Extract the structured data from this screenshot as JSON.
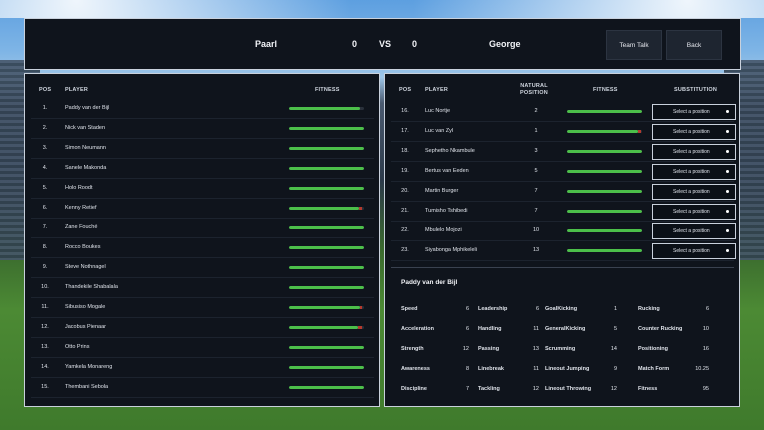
{
  "header": {
    "home_team": "Paarl",
    "home_score": "0",
    "vs": "VS",
    "away_score": "0",
    "away_team": "George",
    "team_talk_label": "Team Talk",
    "back_label": "Back"
  },
  "lineup": {
    "headers": {
      "pos": "POS",
      "player": "PLAYER",
      "fitness": "FITNESS"
    },
    "rows": [
      {
        "pos": "1.",
        "name": "Paddy van der Bijl",
        "fitness": 0.95,
        "red": 0.0
      },
      {
        "pos": "2.",
        "name": "Nick van Staden",
        "fitness": 1.0,
        "red": 0.0
      },
      {
        "pos": "3.",
        "name": "Simon Neumann",
        "fitness": 1.0,
        "red": 0.0
      },
      {
        "pos": "4.",
        "name": "Sanele Makonda",
        "fitness": 1.0,
        "red": 0.0
      },
      {
        "pos": "5.",
        "name": "Holo Roodt",
        "fitness": 1.0,
        "red": 0.0
      },
      {
        "pos": "6.",
        "name": "Kenny Retief",
        "fitness": 0.93,
        "red": 0.04
      },
      {
        "pos": "7.",
        "name": "Zane Fouché",
        "fitness": 1.0,
        "red": 0.0
      },
      {
        "pos": "8.",
        "name": "Rocco Boukes",
        "fitness": 1.0,
        "red": 0.0
      },
      {
        "pos": "9.",
        "name": "Steve Nothnagel",
        "fitness": 1.0,
        "red": 0.0
      },
      {
        "pos": "10.",
        "name": "Thandekile Shabalala",
        "fitness": 1.0,
        "red": 0.0
      },
      {
        "pos": "11.",
        "name": "Sibusiso Mogale",
        "fitness": 0.94,
        "red": 0.03
      },
      {
        "pos": "12.",
        "name": "Jacobus Pienaar",
        "fitness": 0.92,
        "red": 0.05
      },
      {
        "pos": "13.",
        "name": "Otto Prins",
        "fitness": 1.0,
        "red": 0.0
      },
      {
        "pos": "14.",
        "name": "Yamkela Monareng",
        "fitness": 1.0,
        "red": 0.0
      },
      {
        "pos": "15.",
        "name": "Thembani Sebola",
        "fitness": 1.0,
        "red": 0.0
      }
    ]
  },
  "bench": {
    "headers": {
      "pos": "POS",
      "player": "PLAYER",
      "natural_position": "NATURAL POSITION",
      "fitness": "FITNESS",
      "substitution": "SUBSTITUTION"
    },
    "select_placeholder": "Select a position",
    "rows": [
      {
        "pos": "16.",
        "name": "Luc Nortje",
        "natural": "2",
        "fitness": 1.0,
        "red": 0.0
      },
      {
        "pos": "17.",
        "name": "Luc van Zyl",
        "natural": "1",
        "fitness": 0.95,
        "red": 0.03
      },
      {
        "pos": "18.",
        "name": "Sephetho Nkambule",
        "natural": "3",
        "fitness": 1.0,
        "red": 0.0
      },
      {
        "pos": "19.",
        "name": "Bertus van Eeden",
        "natural": "5",
        "fitness": 1.0,
        "red": 0.0
      },
      {
        "pos": "20.",
        "name": "Martin Burger",
        "natural": "7",
        "fitness": 1.0,
        "red": 0.0
      },
      {
        "pos": "21.",
        "name": "Tumisho Tshibedi",
        "natural": "7",
        "fitness": 1.0,
        "red": 0.0
      },
      {
        "pos": "22.",
        "name": "Mbulelo Mojozi",
        "natural": "10",
        "fitness": 1.0,
        "red": 0.0
      },
      {
        "pos": "23.",
        "name": "Siyabonga Mphikeleli",
        "natural": "13",
        "fitness": 1.0,
        "red": 0.0
      }
    ]
  },
  "player_detail": {
    "name": "Paddy van der Bijl",
    "columns": [
      [
        {
          "label": "Speed",
          "value": "6"
        },
        {
          "label": "Acceleration",
          "value": "6"
        },
        {
          "label": "Strength",
          "value": "12"
        },
        {
          "label": "Awareness",
          "value": "8"
        },
        {
          "label": "Discipline",
          "value": "7"
        }
      ],
      [
        {
          "label": "Leadership",
          "value": "6"
        },
        {
          "label": "Handling",
          "value": "11"
        },
        {
          "label": "Passing",
          "value": "13"
        },
        {
          "label": "Linebreak",
          "value": "11"
        },
        {
          "label": "Tackling",
          "value": "12"
        }
      ],
      [
        {
          "label": "GoalKicking",
          "value": "1"
        },
        {
          "label": "GeneralKicking",
          "value": "5"
        },
        {
          "label": "Scrumming",
          "value": "14"
        },
        {
          "label": "Lineout Jumping",
          "value": "9"
        },
        {
          "label": "Lineout Throwing",
          "value": "12"
        }
      ],
      [
        {
          "label": "Rucking",
          "value": "6"
        },
        {
          "label": "Counter Rucking",
          "value": "10"
        },
        {
          "label": "Positioning",
          "value": "16"
        },
        {
          "label": "Match Form",
          "value": "10.25"
        },
        {
          "label": "Fitness",
          "value": "95"
        }
      ]
    ]
  },
  "colors": {
    "panel_bg": "#0f141c",
    "fitness_green": "#4cbf4a",
    "fitness_red": "#b53a2e",
    "border": "#c9d1dc"
  }
}
